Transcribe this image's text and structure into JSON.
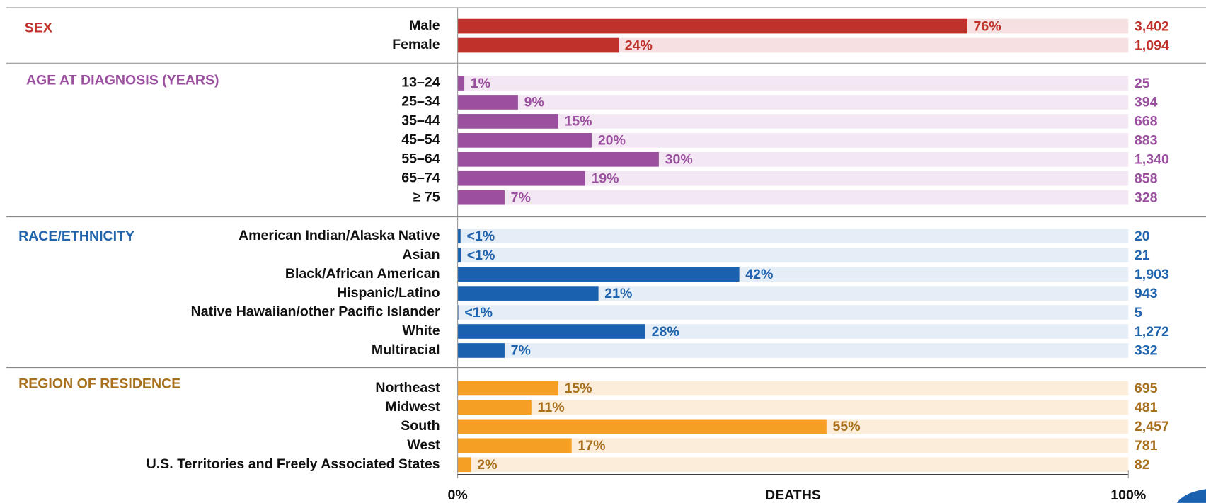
{
  "chart_data": {
    "type": "bar",
    "xlim": [
      0,
      100
    ],
    "xticks": [
      {
        "value": 0,
        "label": "0%"
      },
      {
        "value": 100,
        "label": "100%"
      }
    ],
    "xlabel": "DEATHS",
    "groups": [
      {
        "title": "SEX",
        "color": "#c0312b",
        "track_color": "#f6e0e1",
        "label_color": "#c0312b",
        "categories": [
          "Male",
          "Female"
        ],
        "values": [
          76,
          24
        ],
        "value_labels": [
          "76%",
          "24%"
        ],
        "counts": [
          3402,
          1094
        ],
        "count_labels": [
          "3,402",
          "1,094"
        ]
      },
      {
        "title": "AGE AT DIAGNOSIS (YEARS)",
        "color": "#9b4f9f",
        "track_color": "#f3e7f3",
        "label_color": "#9b4f9f",
        "categories": [
          "13–24",
          "25–34",
          "35–44",
          "45–54",
          "55–64",
          "65–74",
          "≥ 75"
        ],
        "values": [
          1,
          9,
          15,
          20,
          30,
          19,
          7
        ],
        "value_labels": [
          "1%",
          "9%",
          "15%",
          "20%",
          "30%",
          "19%",
          "7%"
        ],
        "counts": [
          25,
          394,
          668,
          883,
          1340,
          858,
          328
        ],
        "count_labels": [
          "25",
          "394",
          "668",
          "883",
          "1,340",
          "858",
          "328"
        ]
      },
      {
        "title": "RACE/ETHNICITY",
        "color": "#1a62b0",
        "track_color": "#e5edf6",
        "label_color": "#1f64ad",
        "categories": [
          "American Indian/Alaska Native",
          "Asian",
          "Black/African American",
          "Hispanic/Latino",
          "Native Hawaiian/other Pacific Islander",
          "White",
          "Multiracial"
        ],
        "values": [
          0.44,
          0.47,
          42,
          21,
          0.11,
          28,
          7
        ],
        "value_labels": [
          "<1%",
          "<1%",
          "42%",
          "21%",
          "<1%",
          "28%",
          "7%"
        ],
        "counts": [
          20,
          21,
          1903,
          943,
          5,
          1272,
          332
        ],
        "count_labels": [
          "20",
          "21",
          "1,903",
          "943",
          "5",
          "1,272",
          "332"
        ]
      },
      {
        "title": "REGION OF RESIDENCE",
        "color": "#f5a023",
        "track_color": "#fcecda",
        "label_color": "#a8701d",
        "categories": [
          "Northeast",
          "Midwest",
          "South",
          "West",
          "U.S. Territories and Freely Associated States"
        ],
        "values": [
          15,
          11,
          55,
          17,
          2
        ],
        "value_labels": [
          "15%",
          "11%",
          "55%",
          "17%",
          "2%"
        ],
        "counts": [
          695,
          481,
          2457,
          781,
          82
        ],
        "count_labels": [
          "695",
          "481",
          "2,457",
          "781",
          "82"
        ]
      }
    ]
  }
}
